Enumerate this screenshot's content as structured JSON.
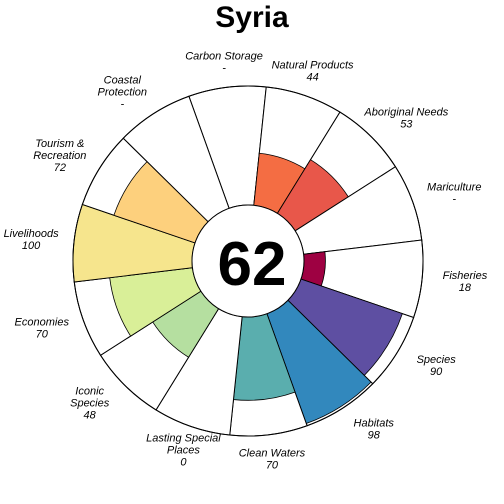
{
  "chart_data": {
    "type": "flower",
    "title": "Syria",
    "center_score": "62",
    "scale": [
      0,
      100
    ],
    "petals": [
      {
        "name": [
          "Carbon Storage"
        ],
        "value_label": "-",
        "value": null,
        "color": "#ffffff"
      },
      {
        "name": [
          "Natural Products"
        ],
        "value_label": "44",
        "value": 44,
        "color": "#f46d43"
      },
      {
        "name": [
          "Aboriginal Needs"
        ],
        "value_label": "53",
        "value": 53,
        "color": "#e8574a"
      },
      {
        "name": [
          "Mariculture"
        ],
        "value_label": "-",
        "value": null,
        "color": "#ffffff"
      },
      {
        "name": [
          "Fisheries"
        ],
        "value_label": "18",
        "value": 18,
        "color": "#9e0142"
      },
      {
        "name": [
          "Species"
        ],
        "value_label": "90",
        "value": 90,
        "color": "#5e4fa2"
      },
      {
        "name": [
          "Habitats"
        ],
        "value_label": "98",
        "value": 98,
        "color": "#3288bd"
      },
      {
        "name": [
          "Clean Waters"
        ],
        "value_label": "70",
        "value": 70,
        "color": "#5aaeae"
      },
      {
        "name": [
          "Lasting Special",
          "Places"
        ],
        "value_label": "0",
        "value": 0,
        "color": "#ffffff"
      },
      {
        "name": [
          "Iconic",
          "Species"
        ],
        "value_label": "48",
        "value": 48,
        "color": "#b5dfa0"
      },
      {
        "name": [
          "Economies"
        ],
        "value_label": "70",
        "value": 70,
        "color": "#d9ef98"
      },
      {
        "name": [
          "Livelihoods"
        ],
        "value_label": "100",
        "value": 100,
        "color": "#f6e58d"
      },
      {
        "name": [
          "Tourism &",
          "Recreation"
        ],
        "value_label": "72",
        "value": 72,
        "color": "#fdd07d"
      },
      {
        "name": [
          "Coastal",
          "Protection"
        ],
        "value_label": "-",
        "value": null,
        "color": "#ffffff"
      }
    ]
  }
}
